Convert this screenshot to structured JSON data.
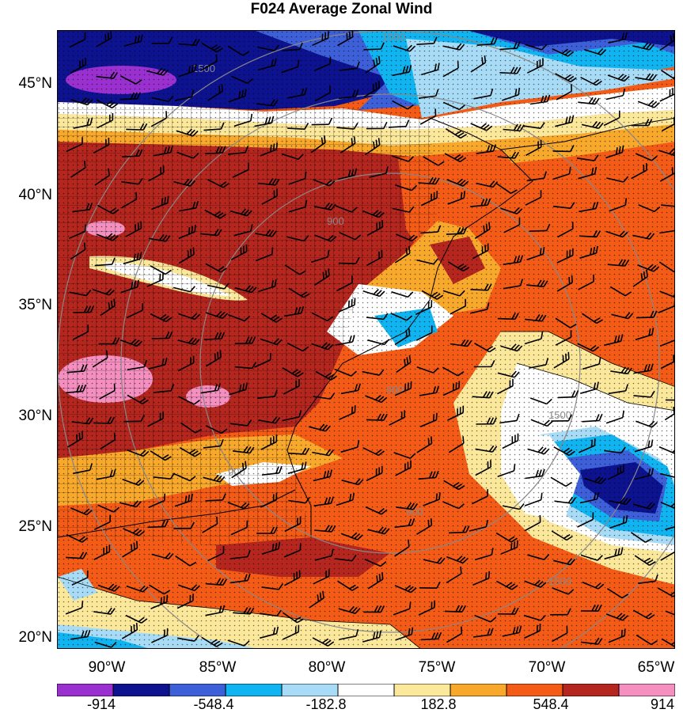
{
  "title": "F024 Average Zonal Wind",
  "lat_labels": [
    "45°N",
    "40°N",
    "35°N",
    "30°N",
    "25°N",
    "20°N"
  ],
  "lon_labels": [
    "90°W",
    "85°W",
    "80°W",
    "75°W",
    "70°W",
    "65°W"
  ],
  "contour_labels": [
    "1500",
    "1500",
    "900",
    "900",
    "900",
    "900",
    "1500",
    "1500"
  ],
  "colorbar": {
    "colors": [
      "#9b30d0",
      "#0d128f",
      "#3d60d8",
      "#10b4f0",
      "#a8dcf6",
      "#ffffff",
      "#fbe89a",
      "#f8a92c",
      "#f45b17",
      "#b5261f",
      "#f48fc0"
    ],
    "labels": [
      "-914",
      "-548.4",
      "-182.8",
      "182.8",
      "548.4",
      "914"
    ]
  },
  "colors": {
    "frame": "#000000",
    "contour": "#888888",
    "barb": "#000000"
  }
}
